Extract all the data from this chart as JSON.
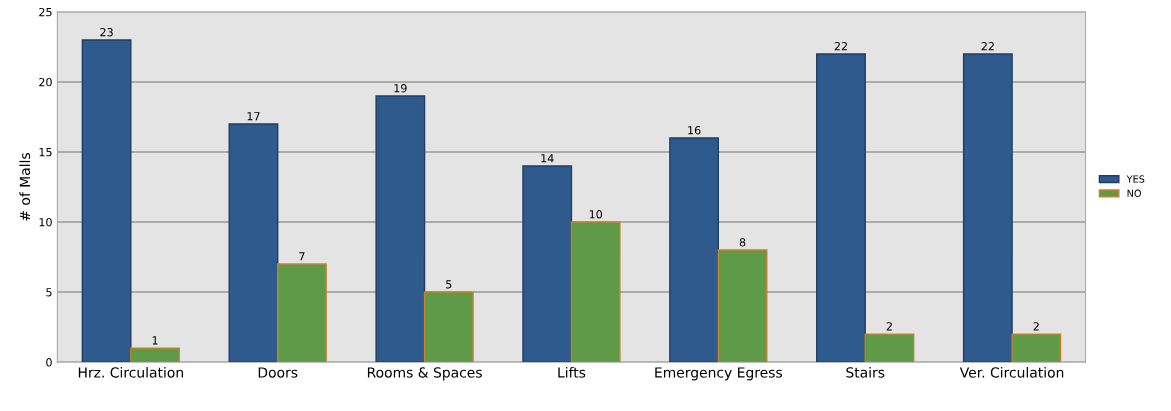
{
  "chart_data": {
    "type": "bar",
    "ylabel": "# of Malls",
    "categories": [
      "Hrz. Circulation",
      "Doors",
      "Rooms & Spaces",
      "Lifts",
      "Emergency Egress",
      "Stairs",
      "Ver. Circulation"
    ],
    "series": [
      {
        "name": "YES",
        "color": "#2e5a8e",
        "values": [
          23,
          17,
          19,
          14,
          16,
          22,
          22
        ]
      },
      {
        "name": "NO",
        "color": "#5e9a48",
        "values": [
          1,
          7,
          5,
          10,
          8,
          2,
          2
        ]
      }
    ],
    "ylim": [
      0,
      25
    ],
    "yticks": [
      0,
      5,
      10,
      15,
      20,
      25
    ],
    "grid": "y",
    "legend": "right",
    "data_labels": true
  }
}
